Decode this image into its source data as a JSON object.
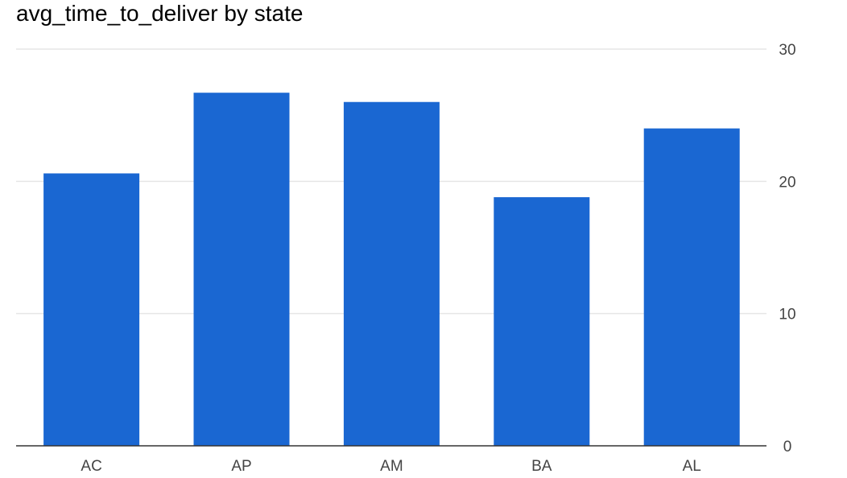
{
  "chart_data": {
    "type": "bar",
    "title": "avg_time_to_deliver by state",
    "categories": [
      "AC",
      "AP",
      "AM",
      "BA",
      "AL"
    ],
    "values": [
      20.6,
      26.7,
      26.0,
      18.8,
      24.0
    ],
    "xlabel": "",
    "ylabel": "",
    "ylim": [
      0,
      30
    ],
    "yticks": [
      "0",
      "10",
      "20",
      "30"
    ],
    "y_axis_side": "right",
    "grid": true,
    "colors": {
      "bar": "#1a67d2",
      "grid": "#e6e6e6",
      "baseline": "#333333",
      "tick_text": "#444444"
    }
  }
}
